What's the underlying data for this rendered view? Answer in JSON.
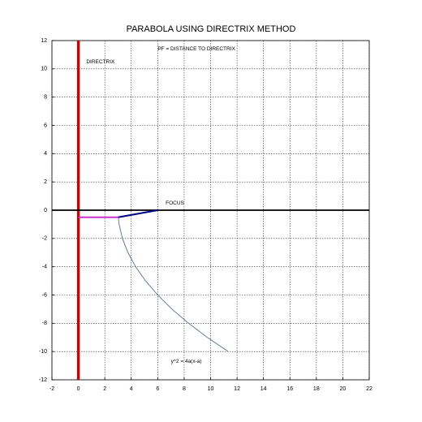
{
  "chart_data": {
    "type": "line",
    "title": "PARABOLA USING DIRECTRIX METHOD",
    "annotations": [
      "PF = DISTANCE TO DIRECTRIX",
      "DIRECTRIX",
      "FOCUS",
      "y^2 = 4a(x-a)"
    ],
    "xlim": [
      -2,
      22
    ],
    "xticks": [
      -2,
      0,
      2,
      4,
      6,
      8,
      10,
      12,
      14,
      16,
      18,
      20,
      22
    ],
    "ylim": [
      -12,
      12
    ],
    "yticks": [
      -12,
      -10,
      -8,
      -6,
      -4,
      -2,
      0,
      2,
      4,
      6,
      8,
      10,
      12
    ],
    "grid": true,
    "series": [
      {
        "color": "#cc0000",
        "x": [
          0,
          0
        ],
        "values": [
          -12,
          12
        ]
      },
      {
        "color": "#000000",
        "x": [
          -2,
          22
        ],
        "values": [
          0,
          0
        ]
      },
      {
        "color": "#cc33cc",
        "x": [
          0,
          3
        ],
        "values": [
          -0.5,
          -0.5
        ]
      },
      {
        "color": "#000080",
        "x": [
          3,
          6
        ],
        "values": [
          -0.5,
          0
        ]
      },
      {
        "color": "#5a6f8f",
        "x": [
          3.02,
          3.08,
          3.33,
          3.75,
          4.33,
          5.08,
          6,
          7.08,
          8.33,
          9.75,
          11.33
        ],
        "values": [
          -0.5,
          -1,
          -2,
          -3,
          -4,
          -5,
          -6,
          -7,
          -8,
          -9,
          -10
        ]
      }
    ]
  }
}
